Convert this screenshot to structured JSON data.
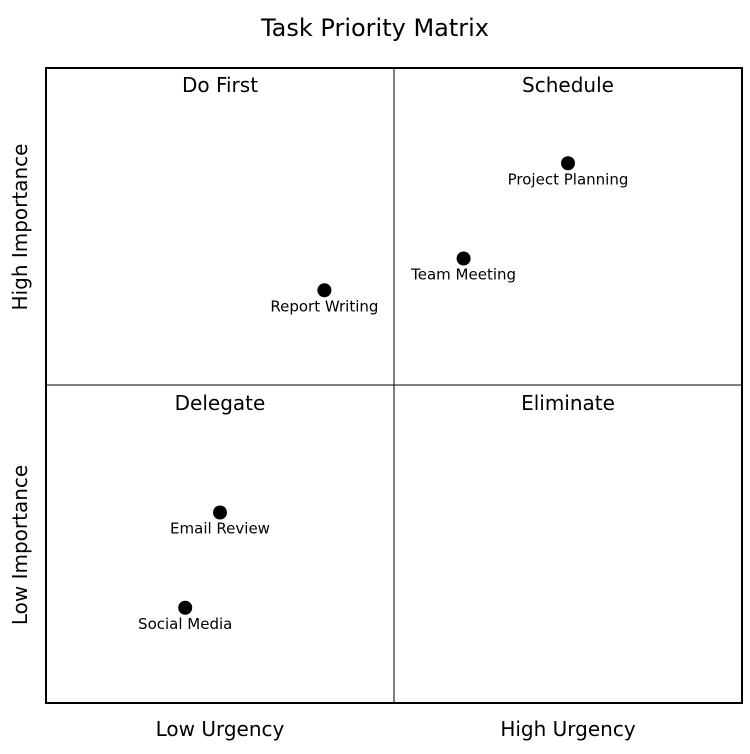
{
  "chart_data": {
    "type": "scatter",
    "title": "Task Priority Matrix",
    "xlim": [
      0,
      10
    ],
    "ylim": [
      0,
      10
    ],
    "x_tick_labels": [
      "Low Urgency",
      "High Urgency"
    ],
    "y_tick_labels": [
      "Low Importance",
      "High Importance"
    ],
    "quadrants": {
      "top_left": "Do First",
      "top_right": "Schedule",
      "bottom_left": "Delegate",
      "bottom_right": "Eliminate"
    },
    "points": [
      {
        "label": "Project Planning",
        "x": 7.5,
        "y": 8.5
      },
      {
        "label": "Team Meeting",
        "x": 6.0,
        "y": 7.0
      },
      {
        "label": "Report Writing",
        "x": 4.0,
        "y": 6.5
      },
      {
        "label": "Email Review",
        "x": 2.5,
        "y": 3.0
      },
      {
        "label": "Social Media",
        "x": 2.0,
        "y": 1.5
      }
    ],
    "point_color": "#000000"
  }
}
